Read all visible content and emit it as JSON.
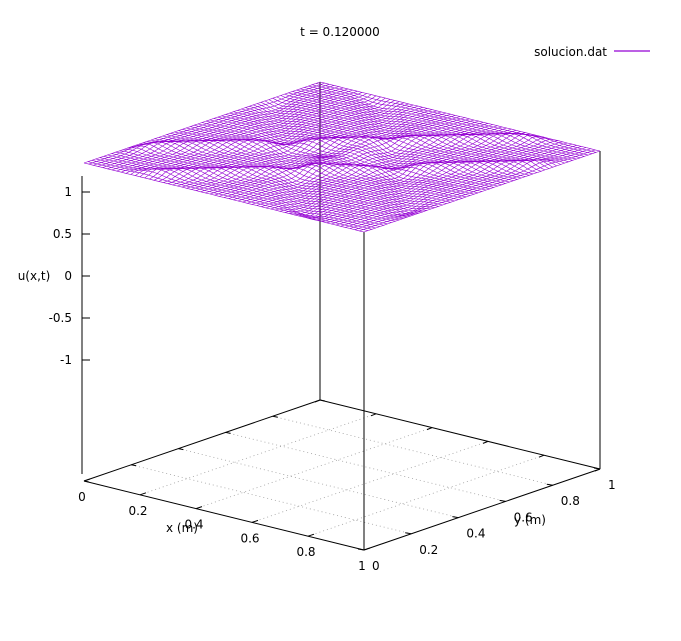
{
  "chart_data": {
    "type": "surface",
    "title": "t = 0.120000",
    "legend": {
      "label": "solucion.dat",
      "position": "top-right",
      "color": "#9400d3"
    },
    "xlabel": "x (m)",
    "ylabel": "y (m)",
    "zlabel": "u(x,t)",
    "xlim": [
      0,
      1
    ],
    "ylim": [
      0,
      1
    ],
    "zlim": [
      -1,
      1
    ],
    "x_ticks": [
      "0",
      "0.2",
      "0.4",
      "0.6",
      "0.8",
      "1"
    ],
    "y_ticks": [
      "0",
      "0.2",
      "0.4",
      "0.6",
      "0.8",
      "1"
    ],
    "z_ticks": [
      "1",
      "0.5",
      "0",
      "-0.5",
      "-1"
    ],
    "grid": true,
    "surface_color": "#9400d3",
    "surface_value_level": 0,
    "surface_note": "u(x,y) ≈ 0 over the domain with small wave-front ridges along the diagonals and edges"
  }
}
